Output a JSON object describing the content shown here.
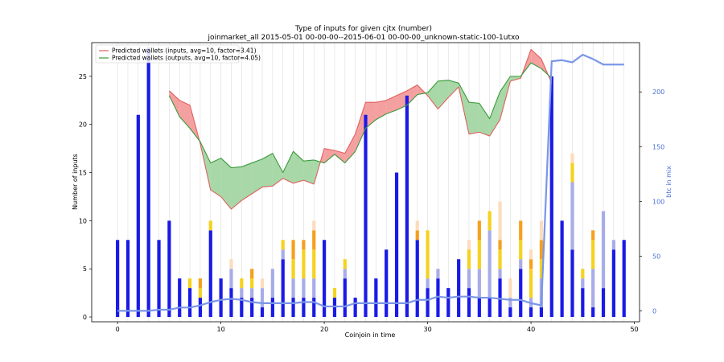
{
  "chart_data": {
    "type": "bar",
    "title": "Type of inputs for given cjtx (number)",
    "subtitle": "joinmarket_all 2015-05-01 00-00-00--2015-06-01 00-00-00_unknown-static-100-1utxo",
    "xlabel": "Coinjoin in time",
    "ylabel": "Number of inputs",
    "ylabel_right": "btc in mix",
    "xlim": [
      -2.5,
      50.5
    ],
    "ylim": [
      -0.5,
      28.5
    ],
    "ylim_right": [
      -10,
      245
    ],
    "x_ticks": [
      0,
      10,
      20,
      30,
      40,
      50
    ],
    "y_ticks": [
      0,
      5,
      10,
      15,
      20,
      25
    ],
    "y_ticks_right": [
      0,
      50,
      100,
      150,
      200
    ],
    "grid": "vertical",
    "legend_position": "top-left",
    "colors": {
      "fresh": "#1a1ae6",
      "remix1": "#a8ace8",
      "remix2": "#f5d21f",
      "remix3": "#f5a020",
      "remix4": "#fcdcbc",
      "inputs_edge": "#e06060",
      "inputs_fill": "#f5a0a0",
      "outputs_edge": "#3a9a3a",
      "outputs_fill": "#a8d8a8",
      "btc_line": "#7a96e8"
    },
    "stack_series": [
      {
        "key": "fresh",
        "values": [
          8,
          8,
          21,
          28,
          8,
          10,
          4,
          3,
          2,
          9,
          4,
          3,
          2,
          2,
          1,
          2,
          6,
          2,
          2,
          2,
          8,
          2,
          4,
          2,
          21,
          4,
          7,
          15,
          23,
          8,
          3,
          4,
          3,
          6,
          3,
          2,
          2,
          4,
          1,
          5,
          1,
          1,
          25,
          10,
          7,
          3,
          1,
          3,
          7,
          8
        ]
      },
      {
        "key": "remix1",
        "values": [
          0,
          0,
          0,
          0,
          0,
          0,
          0,
          0,
          0,
          0,
          0,
          2,
          1,
          1,
          2,
          3,
          1,
          2,
          2,
          2,
          0,
          0,
          1,
          0,
          0,
          0,
          0,
          0,
          0,
          0,
          1,
          1,
          0,
          0,
          2,
          3,
          7,
          1,
          1,
          1,
          1,
          3,
          0,
          0,
          7,
          1,
          4,
          8,
          1,
          0
        ]
      },
      {
        "key": "remix2",
        "values": [
          0,
          0,
          0,
          0,
          0,
          0,
          0,
          1,
          1,
          1,
          0,
          0,
          1,
          1,
          0,
          0,
          1,
          2,
          3,
          3,
          0,
          1,
          1,
          0,
          0,
          0,
          0,
          0,
          0,
          0,
          5,
          0,
          0,
          0,
          2,
          3,
          2,
          2,
          0,
          2,
          3,
          2,
          0,
          0,
          2,
          1,
          3,
          0,
          0,
          0
        ]
      },
      {
        "key": "remix3",
        "values": [
          0,
          0,
          0,
          0,
          0,
          0,
          0,
          0,
          1,
          0,
          0,
          0,
          0,
          1,
          0,
          0,
          0,
          2,
          1,
          2,
          0,
          0,
          0,
          0,
          0,
          0,
          0,
          0,
          0,
          1,
          0,
          0,
          0,
          0,
          0,
          2,
          0,
          1,
          0,
          2,
          1,
          2,
          0,
          0,
          0,
          0,
          1,
          0,
          0,
          0
        ]
      },
      {
        "key": "remix4",
        "values": [
          0,
          0,
          0,
          0,
          0,
          0,
          0,
          0,
          0,
          0,
          0,
          1,
          0,
          0,
          1,
          0,
          0,
          0,
          0,
          1,
          0,
          0,
          0,
          0,
          0,
          0,
          0,
          0,
          0,
          1,
          0,
          0,
          0,
          0,
          1,
          0,
          0,
          4,
          2,
          0,
          1,
          2,
          0,
          0,
          1,
          0,
          0,
          0,
          0,
          0
        ]
      }
    ],
    "series": [
      {
        "name": "Predicted wallets (inputs, avg=10, factor=3.41)",
        "x": [
          5,
          6,
          7,
          8,
          9,
          10,
          11,
          12,
          13,
          14,
          15,
          16,
          17,
          18,
          19,
          20,
          21,
          22,
          23,
          24,
          25,
          26,
          27,
          28,
          29,
          30,
          31,
          32,
          33,
          34,
          35,
          36,
          37,
          38,
          39,
          40,
          41,
          42
        ],
        "values": [
          23.5,
          22.5,
          22,
          18,
          13.2,
          12.5,
          11.2,
          12.1,
          12.8,
          13.5,
          13.6,
          14.4,
          13.9,
          14.2,
          13.8,
          17.5,
          17.3,
          17,
          19,
          22.3,
          22.3,
          22.5,
          23,
          23.5,
          24.1,
          23,
          21.6,
          22.8,
          23.9,
          19,
          19.2,
          18.8,
          20.5,
          24.5,
          24.8,
          27.8,
          26.8,
          24.3
        ]
      },
      {
        "name": "Predicted wallets (outputs, avg=10, factor=4.05)",
        "x": [
          5,
          6,
          7,
          8,
          9,
          10,
          11,
          12,
          13,
          14,
          15,
          16,
          17,
          18,
          19,
          20,
          21,
          22,
          23,
          24,
          25,
          26,
          27,
          28,
          29,
          30,
          31,
          32,
          33,
          34,
          35,
          36,
          37,
          38,
          39,
          40,
          41,
          42
        ],
        "values": [
          23,
          20.8,
          19.6,
          18.2,
          16,
          16.5,
          15.5,
          15.6,
          16,
          16.4,
          17,
          15,
          17.2,
          16.2,
          16.3,
          16,
          16.9,
          16,
          17.2,
          19.6,
          20.5,
          21.1,
          21.5,
          22,
          23.1,
          23.3,
          24.5,
          24.6,
          24.3,
          22.3,
          22.2,
          20.6,
          23.4,
          25,
          25,
          26.4,
          25.8,
          24.8
        ]
      },
      {
        "name": "btc in mix",
        "x": [
          0,
          1,
          2,
          3,
          4,
          5,
          6,
          7,
          8,
          9,
          10,
          11,
          12,
          13,
          14,
          15,
          16,
          17,
          18,
          19,
          20,
          21,
          22,
          23,
          24,
          25,
          26,
          27,
          28,
          29,
          30,
          31,
          32,
          33,
          34,
          35,
          36,
          37,
          38,
          39,
          40,
          41,
          42,
          43,
          44,
          45,
          46,
          47,
          48,
          49
        ],
        "values": [
          0,
          0,
          0,
          0,
          1,
          1,
          3,
          3,
          5,
          8,
          10,
          11,
          10,
          8,
          7,
          7,
          7,
          7,
          8,
          8,
          4,
          4,
          4,
          7,
          7,
          7,
          7,
          7,
          7,
          10,
          10,
          13,
          12,
          13,
          13,
          12,
          12,
          11,
          10,
          10,
          7,
          5,
          228,
          229,
          227,
          234,
          230,
          225,
          225,
          225
        ]
      }
    ]
  }
}
